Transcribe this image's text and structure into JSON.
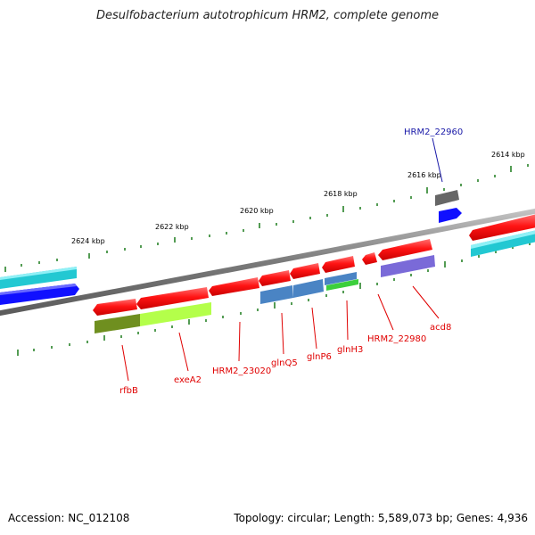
{
  "title": "Desulfobacterium autotrophicum HRM2, complete genome",
  "footer": {
    "accession": "Accession: NC_012108",
    "summary": "Topology: circular; Length: 5,589,073 bp; Genes: 4,936"
  },
  "ticks": [
    "2624 kbp",
    "2622 kbp",
    "2620 kbp",
    "2618 kbp",
    "2616 kbp",
    "2614 kbp"
  ],
  "labels": {
    "rfbB": "rfbB",
    "exeA2": "exeA2",
    "hrm2_23020": "HRM2_23020",
    "glnQ5": "glnQ5",
    "glnP6": "glnP6",
    "glnH3": "glnH3",
    "hrm2_22980": "HRM2_22980",
    "acd8": "acd8",
    "hrm2_22960": "HRM2_22960"
  },
  "colors": {
    "gene": "#ff1f1f",
    "highlight": "#1a1aa8",
    "backbone": "#8a8a8a",
    "tick": "#1a7a1a",
    "cog_lime": "#b4ff4a",
    "cog_olive": "#6f8f1f",
    "cog_steel": "#4a84c4",
    "cog_cyan": "#22c8d2",
    "cog_blue": "#1010ff",
    "cog_violet": "#7a6ad8",
    "cog_green": "#3ccf3c",
    "cog_gray": "#666666"
  }
}
